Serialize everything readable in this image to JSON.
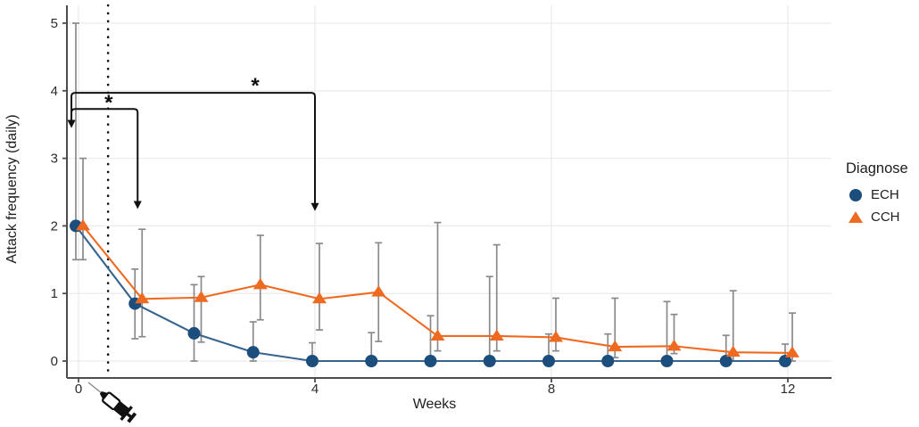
{
  "figure_title": "",
  "legend": {
    "title": "Diagnose"
  },
  "chart_data": {
    "type": "line",
    "title": "",
    "xlabel": "Weeks",
    "ylabel": "Attack frequency (daily)",
    "x": [
      0,
      1,
      2,
      3,
      4,
      5,
      6,
      7,
      8,
      9,
      10,
      11,
      12
    ],
    "xticks": [
      0,
      4,
      8,
      12
    ],
    "xtick_labels": [
      "0",
      "4",
      "8",
      "12"
    ],
    "yticks": [
      0,
      1,
      2,
      3,
      4,
      5
    ],
    "ytick_labels": [
      "0",
      "1",
      "2",
      "3",
      "4",
      "5"
    ],
    "xlim": [
      -0.2,
      12.74
    ],
    "ylim": [
      -0.25,
      5.27
    ],
    "grid": true,
    "legend_title": "Diagnose",
    "legend_position": "right",
    "series": [
      {
        "name": "ECH",
        "marker": "circle",
        "marker_color": "#1b4e7c",
        "line_color": "#36648f",
        "values": [
          2.0,
          0.85,
          0.41,
          0.13,
          0,
          0,
          0,
          0,
          0,
          0,
          0,
          0,
          0
        ],
        "err_low": [
          1.5,
          0.33,
          0.0,
          0.0,
          0,
          0,
          0,
          0,
          0,
          0,
          0,
          0,
          0
        ],
        "err_high": [
          5.0,
          1.36,
          1.13,
          0.58,
          0.27,
          0.42,
          0.67,
          1.25,
          0.4,
          0.4,
          0.88,
          0.38,
          0.25
        ]
      },
      {
        "name": "CCH",
        "marker": "triangle",
        "marker_color": "#ef6a21",
        "line_color": "#ef6a21",
        "values": [
          2.0,
          0.92,
          0.94,
          1.13,
          0.92,
          1.02,
          0.37,
          0.37,
          0.35,
          0.21,
          0.22,
          0.13,
          0.12
        ],
        "err_low": [
          1.5,
          0.36,
          0.28,
          0.61,
          0.46,
          0.29,
          0.15,
          0.15,
          0.15,
          0.05,
          0.11,
          0.0,
          0.0
        ],
        "err_high": [
          3.0,
          1.95,
          1.25,
          1.86,
          1.74,
          1.75,
          2.05,
          1.72,
          0.93,
          0.93,
          0.69,
          1.04,
          0.71
        ]
      }
    ],
    "colors": {
      "error_bar": "#8a8a8a",
      "grid": "#ececec",
      "axis": "#4d4d4d",
      "tick_text": "#2b2b2b",
      "annotation": "#111111"
    },
    "annotations": {
      "injection_line_week": 0.5,
      "injection_icon": "syringe-icon",
      "significance_brackets": [
        {
          "label": "*",
          "x_from_week": -0.12,
          "x_to_week": 1.0,
          "bar_y_value": 3.73,
          "left_arrow_tip_value": 3.45,
          "right_arrow_tip_value": 2.25,
          "star_week": 0.51,
          "star_value": 3.84
        },
        {
          "label": "*",
          "x_from_week": -0.12,
          "x_to_week": 4.0,
          "bar_y_value": 3.97,
          "left_arrow_tip_value": 3.45,
          "right_arrow_tip_value": 2.22,
          "star_week": 2.99,
          "star_value": 4.09
        }
      ]
    }
  }
}
